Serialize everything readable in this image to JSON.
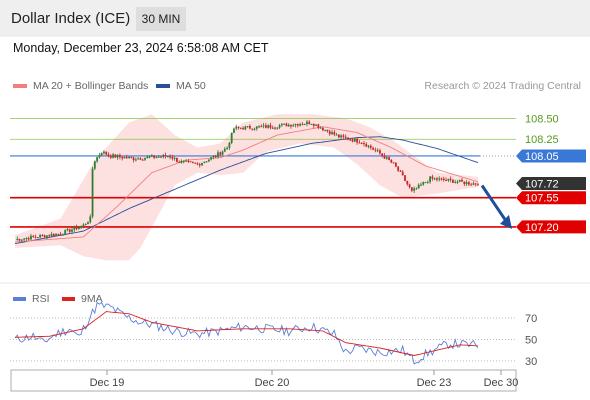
{
  "header": {
    "title": "Dollar Index (ICE)",
    "timeframe": "30 MIN"
  },
  "datetime": "Monday, December 23, 2024 6:58:08 AM CET",
  "legend": {
    "ma20": "MA 20 + Bollinger Bands",
    "ma50": "MA 50"
  },
  "credit": "Research © 2024 Trading Central",
  "rsi_legend": {
    "rsi": "RSI",
    "ma": "9MA"
  },
  "colors": {
    "up": "#2e7d32",
    "down": "#c62828",
    "ma20": "#f08080",
    "ma50": "#2a4f9a",
    "band": "#fde0e0",
    "resistance": "#8bc34a",
    "pivot": "#3a78d8",
    "support": "#e00000",
    "current": "#333333",
    "rsi": "#5b7fd6",
    "rsi_ma": "#dd2222",
    "arrow": "#1f4e9c"
  },
  "chart_data": [
    {
      "type": "candlestick",
      "y_range": [
        106.78,
        108.72
      ],
      "x_labels": [
        "Dec 19",
        "Dec 20",
        "Dec 23",
        "Dec 30"
      ],
      "levels": [
        {
          "value": 108.5,
          "label": "108.50",
          "kind": "resistance"
        },
        {
          "value": 108.25,
          "label": "108.25",
          "kind": "resistance"
        },
        {
          "value": 108.05,
          "label": "108.05",
          "kind": "pivot"
        },
        {
          "value": 107.72,
          "label": "107.72",
          "kind": "current"
        },
        {
          "value": 107.55,
          "label": "107.55",
          "kind": "support"
        },
        {
          "value": 107.2,
          "label": "107.20",
          "kind": "support"
        }
      ],
      "close_keypoints": [
        [
          0,
          107.05
        ],
        [
          20,
          107.12
        ],
        [
          30,
          107.22
        ],
        [
          33,
          107.3
        ],
        [
          34,
          107.9
        ],
        [
          35,
          108.0
        ],
        [
          38,
          108.1
        ],
        [
          42,
          108.05
        ],
        [
          52,
          108.02
        ],
        [
          68,
          108.05
        ],
        [
          72,
          107.98
        ],
        [
          80,
          107.95
        ],
        [
          88,
          108.05
        ],
        [
          93,
          108.15
        ],
        [
          96,
          108.38
        ],
        [
          110,
          108.4
        ],
        [
          130,
          108.45
        ],
        [
          137,
          108.35
        ],
        [
          142,
          108.28
        ],
        [
          152,
          108.22
        ],
        [
          160,
          108.08
        ],
        [
          166,
          107.95
        ],
        [
          170,
          107.8
        ],
        [
          174,
          107.62
        ],
        [
          178,
          107.7
        ],
        [
          182,
          107.78
        ],
        [
          192,
          107.75
        ],
        [
          200,
          107.72
        ],
        [
          203,
          107.72
        ]
      ],
      "ma20_keypoints": [
        [
          0,
          107.02
        ],
        [
          30,
          107.08
        ],
        [
          45,
          107.45
        ],
        [
          60,
          107.85
        ],
        [
          75,
          108.0
        ],
        [
          90,
          108.03
        ],
        [
          100,
          108.12
        ],
        [
          115,
          108.3
        ],
        [
          135,
          108.4
        ],
        [
          150,
          108.33
        ],
        [
          165,
          108.15
        ],
        [
          180,
          107.93
        ],
        [
          203,
          107.74
        ]
      ],
      "ma50_keypoints": [
        [
          0,
          107.0
        ],
        [
          30,
          107.15
        ],
        [
          50,
          107.42
        ],
        [
          70,
          107.65
        ],
        [
          90,
          107.88
        ],
        [
          110,
          108.08
        ],
        [
          130,
          108.2
        ],
        [
          150,
          108.27
        ],
        [
          160,
          108.28
        ],
        [
          170,
          108.24
        ],
        [
          185,
          108.14
        ],
        [
          203,
          107.97
        ]
      ],
      "bb_upper_keypoints": [
        [
          0,
          107.1
        ],
        [
          20,
          107.3
        ],
        [
          35,
          108.0
        ],
        [
          50,
          108.45
        ],
        [
          60,
          108.55
        ],
        [
          70,
          108.3
        ],
        [
          80,
          108.15
        ],
        [
          90,
          108.2
        ],
        [
          100,
          108.45
        ],
        [
          115,
          108.55
        ],
        [
          130,
          108.55
        ],
        [
          145,
          108.5
        ],
        [
          155,
          108.4
        ],
        [
          165,
          108.25
        ],
        [
          175,
          108.05
        ],
        [
          185,
          107.85
        ],
        [
          203,
          107.8
        ]
      ],
      "bb_lower_keypoints": [
        [
          0,
          106.95
        ],
        [
          20,
          106.98
        ],
        [
          30,
          106.85
        ],
        [
          40,
          106.8
        ],
        [
          50,
          106.8
        ],
        [
          55,
          106.95
        ],
        [
          62,
          107.3
        ],
        [
          70,
          107.7
        ],
        [
          80,
          107.85
        ],
        [
          90,
          107.82
        ],
        [
          100,
          107.85
        ],
        [
          110,
          108.1
        ],
        [
          125,
          108.2
        ],
        [
          140,
          108.15
        ],
        [
          150,
          107.95
        ],
        [
          160,
          107.7
        ],
        [
          170,
          107.55
        ],
        [
          185,
          107.6
        ],
        [
          203,
          107.68
        ]
      ],
      "forecast_arrow": {
        "from": 107.72,
        "to": 107.2
      }
    },
    {
      "type": "line",
      "name": "RSI",
      "y_ticks": [
        70,
        50,
        30
      ],
      "y_range": [
        14,
        85
      ],
      "rsi_keypoints": [
        [
          0,
          50
        ],
        [
          8,
          53
        ],
        [
          12,
          47
        ],
        [
          18,
          55
        ],
        [
          24,
          60
        ],
        [
          28,
          52
        ],
        [
          32,
          68
        ],
        [
          36,
          82
        ],
        [
          42,
          80
        ],
        [
          48,
          72
        ],
        [
          55,
          66
        ],
        [
          62,
          63
        ],
        [
          70,
          58
        ],
        [
          80,
          55
        ],
        [
          90,
          58
        ],
        [
          100,
          62
        ],
        [
          110,
          60
        ],
        [
          120,
          58
        ],
        [
          130,
          62
        ],
        [
          140,
          55
        ],
        [
          145,
          38
        ],
        [
          150,
          42
        ],
        [
          160,
          38
        ],
        [
          170,
          40
        ],
        [
          175,
          30
        ],
        [
          180,
          36
        ],
        [
          190,
          46
        ],
        [
          200,
          45
        ],
        [
          203,
          44
        ]
      ],
      "ma9_keypoints": [
        [
          0,
          52
        ],
        [
          15,
          53
        ],
        [
          30,
          60
        ],
        [
          40,
          76
        ],
        [
          50,
          74
        ],
        [
          60,
          66
        ],
        [
          70,
          62
        ],
        [
          80,
          58
        ],
        [
          100,
          60
        ],
        [
          120,
          60
        ],
        [
          135,
          58
        ],
        [
          145,
          47
        ],
        [
          160,
          42
        ],
        [
          175,
          35
        ],
        [
          185,
          40
        ],
        [
          195,
          45
        ],
        [
          203,
          44
        ]
      ]
    }
  ]
}
